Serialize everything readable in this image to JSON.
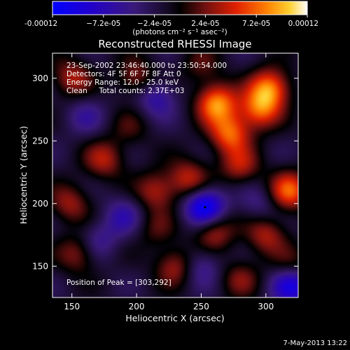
{
  "chart_data": {
    "type": "heatmap",
    "title": "Reconstructed RHESSI Image",
    "xlabel": "Heliocentric X (arcsec)",
    "ylabel": "Heliocentric Y (arcsec)",
    "xlim": [
      135,
      325
    ],
    "ylim": [
      125,
      320
    ],
    "x_ticks": [
      150,
      200,
      250,
      300
    ],
    "y_ticks": [
      150,
      200,
      250,
      300
    ],
    "colorbar": {
      "min": -0.00012,
      "max": 0.00012,
      "tick_labels": [
        "-0.00012",
        "−7.2e-05",
        "−2.4e-05",
        "2.4e-05",
        "7.2e-05",
        "0.00012"
      ],
      "unit_label": "(photons cm⁻² s⁻¹ asec⁻²)"
    },
    "annotations": [
      "23-Sep-2002 23:46:40.000 to 23:50:54.000",
      "Detectors: 4F 5F 6F 7F 8F  Att 0",
      "Energy Range: 12.0 - 25.0 keV",
      "Clean     Total counts: 2.37E+03"
    ],
    "peak_label": "Position of Peak = [303,292]",
    "sources": [
      {
        "x": 262,
        "y": 280,
        "v": 1.0
      },
      {
        "x": 272,
        "y": 256,
        "v": 0.85
      },
      {
        "x": 295,
        "y": 275,
        "v": 0.8
      },
      {
        "x": 303,
        "y": 292,
        "v": 0.95
      },
      {
        "x": 318,
        "y": 210,
        "v": 0.85
      },
      {
        "x": 280,
        "y": 230,
        "v": 0.55
      },
      {
        "x": 240,
        "y": 220,
        "v": 0.6
      },
      {
        "x": 215,
        "y": 210,
        "v": 0.55
      },
      {
        "x": 260,
        "y": 178,
        "v": 0.6
      },
      {
        "x": 300,
        "y": 175,
        "v": 0.55
      },
      {
        "x": 230,
        "y": 150,
        "v": 0.55
      },
      {
        "x": 175,
        "y": 235,
        "v": 0.55
      },
      {
        "x": 150,
        "y": 300,
        "v": 0.55
      },
      {
        "x": 148,
        "y": 200,
        "v": 0.5
      },
      {
        "x": 155,
        "y": 160,
        "v": 0.5
      },
      {
        "x": 200,
        "y": 300,
        "v": 0.5
      },
      {
        "x": 195,
        "y": 260,
        "v": 0.25
      },
      {
        "x": 215,
        "y": 180,
        "v": 0.3
      },
      {
        "x": 280,
        "y": 140,
        "v": 0.4
      },
      {
        "x": 320,
        "y": 150,
        "v": 0.35
      },
      {
        "x": 250,
        "y": 310,
        "v": 0.3
      },
      {
        "x": 253,
        "y": 197,
        "v": -1.0
      },
      {
        "x": 320,
        "y": 135,
        "v": -0.8
      },
      {
        "x": 215,
        "y": 285,
        "v": -0.5
      },
      {
        "x": 190,
        "y": 190,
        "v": -0.4
      },
      {
        "x": 250,
        "y": 150,
        "v": -0.4
      },
      {
        "x": 170,
        "y": 170,
        "v": -0.35
      },
      {
        "x": 295,
        "y": 200,
        "v": -0.3
      },
      {
        "x": 160,
        "y": 270,
        "v": -0.3
      }
    ]
  },
  "footer": {
    "date": "7-May-2013 13:22"
  }
}
